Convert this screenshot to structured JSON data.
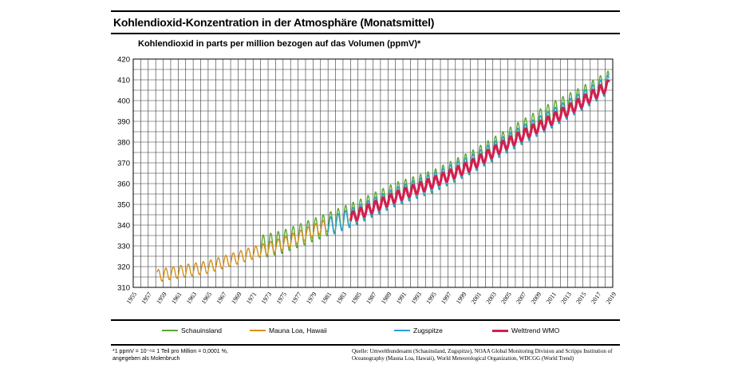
{
  "title": "Kohlendioxid-Konzentration in der Atmosphäre (Monatsmittel)",
  "chart_data": {
    "type": "line",
    "title": "Kohlendioxid-Konzentration in der Atmosphäre (Monatsmittel)",
    "ylabel": "Kohlendioxid in parts per million bezogen auf das Volumen (ppmV)*",
    "xlabel": "",
    "xlim": [
      1955,
      2019
    ],
    "ylim": [
      310,
      420
    ],
    "x_ticks": [
      "1955",
      "1957",
      "1959",
      "1961",
      "1963",
      "1965",
      "1967",
      "1969",
      "1971",
      "1973",
      "1975",
      "1977",
      "1979",
      "1981",
      "1983",
      "1985",
      "1987",
      "1989",
      "1991",
      "1993",
      "1995",
      "1997",
      "1999",
      "2001",
      "2003",
      "2005",
      "2007",
      "2009",
      "2011",
      "2013",
      "2015",
      "2017",
      "2019"
    ],
    "y_ticks": [
      "310",
      "320",
      "330",
      "340",
      "350",
      "360",
      "370",
      "380",
      "390",
      "400",
      "410",
      "420"
    ],
    "grid": true,
    "legend_position": "bottom",
    "series": [
      {
        "name": "Schauinsland",
        "color": "#5aa832",
        "x": [
          1972,
          1975,
          1980,
          1985,
          1990,
          1995,
          2000,
          2005,
          2010,
          2015,
          2018.5
        ],
        "mean": [
          329.5,
          332,
          339,
          346.5,
          355,
          361,
          370,
          381,
          392,
          401.5,
          409
        ],
        "amplitude": 5.5
      },
      {
        "name": "Mauna Loa, Hawaii",
        "color": "#d4901e",
        "x": [
          1958.2,
          1960,
          1965,
          1970,
          1975,
          1980,
          1981
        ],
        "mean": [
          315.5,
          316.8,
          319.8,
          325.5,
          331,
          338.7,
          340
        ],
        "amplitude": 3.0
      },
      {
        "name": "Zugspitze",
        "color": "#2aa0d0",
        "x": [
          1981,
          1985,
          1990,
          1995,
          2000,
          2005,
          2010,
          2015,
          2018.5
        ],
        "mean": [
          339,
          345,
          353.5,
          360.5,
          369,
          379.5,
          389.5,
          400,
          408
        ],
        "amplitude": 4.5
      },
      {
        "name": "Welttrend WMO",
        "color": "#d02050",
        "x": [
          1984,
          1990,
          1995,
          2000,
          2005,
          2010,
          2015,
          2018.5
        ],
        "mean": [
          343.5,
          353.5,
          360.5,
          368.5,
          379.5,
          389,
          399.5,
          407.5
        ],
        "amplitude": 2.5
      }
    ]
  },
  "legend": {
    "schauinsland": "Schauinsland",
    "mauna_loa": "Mauna Loa, Hawaii",
    "zugspitze": "Zugspitze",
    "wmo": "Welttrend WMO"
  },
  "footnote": {
    "line1": "*1 ppmV = 10⁻⁶= 1 Teil pro Million = 0,0001 %,",
    "line2": "angegeben als Molenbruch"
  },
  "source": {
    "line1": "Quelle: Umweltbundesamt (Schauinsland, Zugspitze), NOAA Global Monitoring Division and Scripps Institution of",
    "line2": "Oceanography  (Mauna Loa, Hawaii), World Meteorological Organization, WDCGG (World Trend)"
  }
}
